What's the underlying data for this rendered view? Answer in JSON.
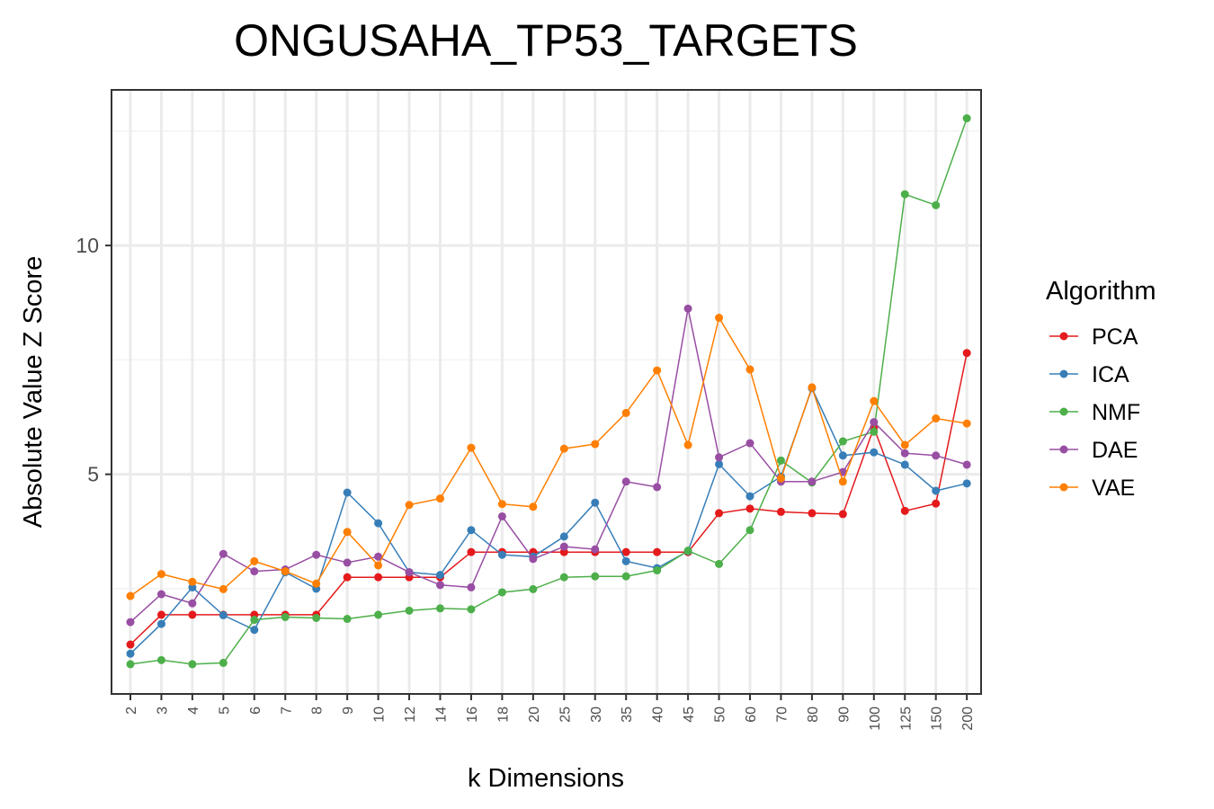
{
  "chart_data": {
    "type": "line",
    "title": "ONGUSAHA_TP53_TARGETS",
    "xlabel": "k Dimensions",
    "ylabel": "Absolute Value Z Score",
    "categories": [
      "2",
      "3",
      "4",
      "5",
      "6",
      "7",
      "8",
      "9",
      "10",
      "12",
      "14",
      "16",
      "18",
      "20",
      "25",
      "30",
      "35",
      "40",
      "45",
      "50",
      "60",
      "70",
      "80",
      "90",
      "100",
      "125",
      "150",
      "200"
    ],
    "ylim": [
      0.2,
      13.4
    ],
    "yticks": [
      5,
      10
    ],
    "grid": true,
    "legend": {
      "title": "Algorithm",
      "position": "right"
    },
    "series": [
      {
        "name": "PCA",
        "color": "#e41a1c",
        "values": [
          1.28,
          1.93,
          1.93,
          1.93,
          1.93,
          1.93,
          1.93,
          2.75,
          2.75,
          2.75,
          2.75,
          3.3,
          3.3,
          3.3,
          3.3,
          3.3,
          3.3,
          3.3,
          3.3,
          4.15,
          4.25,
          4.18,
          4.15,
          4.13,
          6.02,
          4.2,
          4.36,
          7.65
        ]
      },
      {
        "name": "ICA",
        "color": "#377eb8",
        "values": [
          1.08,
          1.73,
          2.53,
          1.92,
          1.6,
          2.86,
          2.5,
          4.6,
          3.93,
          2.86,
          2.8,
          3.78,
          3.24,
          3.2,
          3.64,
          4.38,
          3.1,
          2.95,
          3.32,
          5.22,
          4.52,
          4.95,
          6.88,
          5.41,
          5.48,
          5.21,
          4.64,
          4.8
        ]
      },
      {
        "name": "NMF",
        "color": "#4daf4a",
        "values": [
          0.85,
          0.94,
          0.85,
          0.88,
          1.82,
          1.88,
          1.86,
          1.84,
          1.93,
          2.02,
          2.07,
          2.05,
          2.42,
          2.49,
          2.75,
          2.77,
          2.77,
          2.9,
          3.33,
          3.04,
          3.78,
          5.3,
          4.82,
          5.72,
          5.93,
          11.12,
          10.88,
          12.78
        ]
      },
      {
        "name": "DAE",
        "color": "#984ea3",
        "values": [
          1.77,
          2.38,
          2.18,
          3.26,
          2.88,
          2.92,
          3.24,
          3.07,
          3.2,
          2.86,
          2.58,
          2.53,
          4.08,
          3.15,
          3.42,
          3.36,
          4.84,
          4.72,
          8.62,
          5.37,
          5.68,
          4.84,
          4.84,
          5.05,
          6.14,
          5.46,
          5.41,
          5.21
        ]
      },
      {
        "name": "VAE",
        "color": "#ff7f00",
        "values": [
          2.34,
          2.82,
          2.65,
          2.49,
          3.1,
          2.88,
          2.61,
          3.74,
          3.01,
          4.33,
          4.47,
          5.58,
          4.35,
          4.29,
          5.56,
          5.66,
          6.34,
          7.27,
          5.64,
          8.42,
          7.29,
          4.91,
          6.9,
          4.84,
          6.6,
          5.64,
          6.22,
          6.11
        ]
      }
    ]
  }
}
